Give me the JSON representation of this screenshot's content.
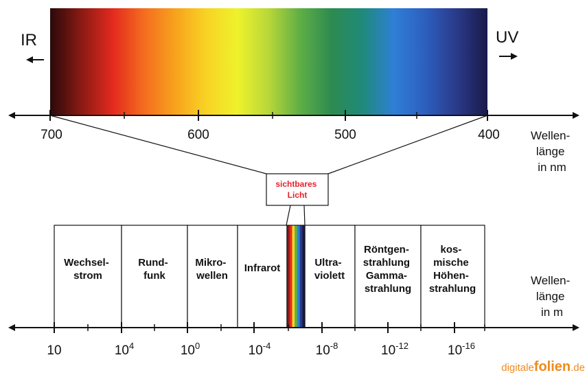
{
  "top_scale": {
    "left_direction": "IR",
    "right_direction": "UV",
    "ticks": [
      "700",
      "600",
      "500",
      "400"
    ],
    "unit_lines": [
      "Wellen-",
      "länge",
      "in nm"
    ]
  },
  "visible_label": {
    "lines": [
      "sichtbares",
      "Licht"
    ],
    "color": "#e8202a"
  },
  "spectrum_colors": [
    "#2a0a0a",
    "#8a1a14",
    "#e32a1e",
    "#f46c1f",
    "#f7a21d",
    "#f8d324",
    "#eef22c",
    "#b8d739",
    "#5fae46",
    "#2d8b4f",
    "#1f8a7a",
    "#2f7fd6",
    "#2d5fbf",
    "#2a3a8a",
    "#1a1a4a"
  ],
  "bands": [
    {
      "id": "wechselstrom",
      "lines": [
        "Wechsel-",
        "strom"
      ]
    },
    {
      "id": "rundfunk",
      "lines": [
        "Rund-",
        "funk"
      ]
    },
    {
      "id": "mikrowellen",
      "lines": [
        "Mikro-",
        "wellen"
      ]
    },
    {
      "id": "infrarot",
      "lines": [
        "Infrarot"
      ]
    },
    {
      "id": "ultraviolett",
      "lines": [
        "Ultra-",
        "violett"
      ]
    },
    {
      "id": "roentgen",
      "lines": [
        "Röntgen-",
        "strahlung",
        "Gamma-",
        "strahlung"
      ]
    },
    {
      "id": "hoehenstrahlung",
      "lines": [
        "kos-",
        "mische",
        "Höhen-",
        "strahlung"
      ]
    }
  ],
  "visible_strip_colors": [
    "#8b1a1a",
    "#e32a1e",
    "#f8d324",
    "#5fae46",
    "#2f7fd6",
    "#2a3a8a",
    "#1a1a4a"
  ],
  "bottom_scale": {
    "ticks": [
      {
        "base": "10",
        "exp": ""
      },
      {
        "base": "10",
        "exp": "4"
      },
      {
        "base": "10",
        "exp": "0"
      },
      {
        "base": "10",
        "exp": "-4"
      },
      {
        "base": "10",
        "exp": "-8"
      },
      {
        "base": "10",
        "exp": "-12"
      },
      {
        "base": "10",
        "exp": "-16"
      }
    ],
    "unit_lines": [
      "Wellen-",
      "länge",
      "in m"
    ]
  },
  "brand": {
    "part1": "digitale",
    "part2": "folien",
    "part3": ".de",
    "color": "#f08a1c"
  }
}
